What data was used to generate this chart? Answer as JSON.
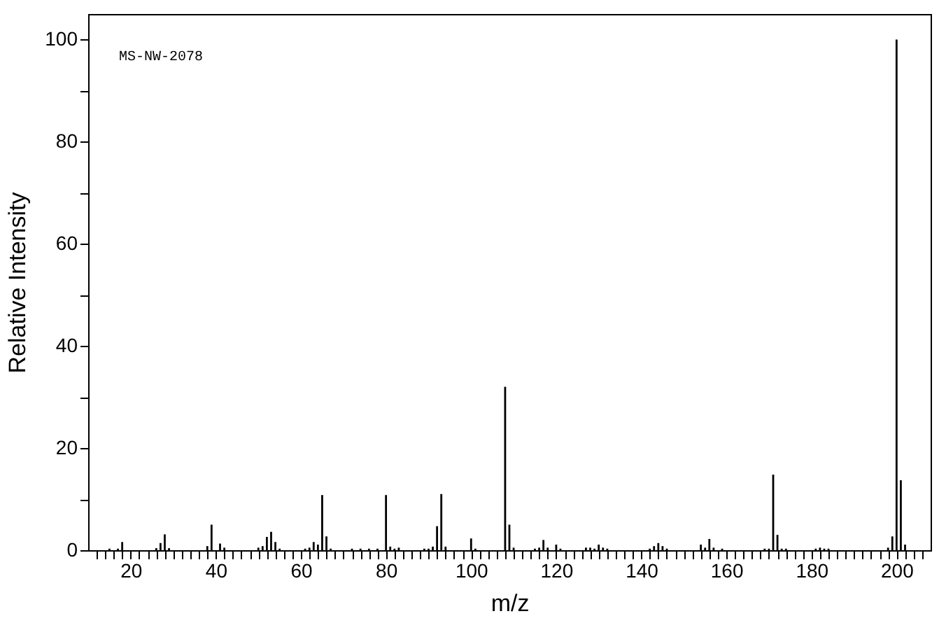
{
  "chart_data": {
    "type": "bar",
    "xlabel": "m/z",
    "ylabel": "Relative Intensity",
    "color": "#000000",
    "grid": false,
    "annotations": [
      "MS-NW-2078"
    ],
    "xlim": [
      10,
      208
    ],
    "ylim": [
      0,
      105
    ],
    "x": [
      15,
      17,
      18,
      26,
      27,
      28,
      29,
      38,
      39,
      41,
      42,
      50,
      51,
      52,
      53,
      54,
      55,
      61,
      62,
      63,
      64,
      65,
      66,
      67,
      72,
      74,
      76,
      78,
      80,
      81,
      82,
      83,
      89,
      90,
      91,
      92,
      93,
      94,
      100,
      101,
      108,
      109,
      110,
      115,
      116,
      117,
      118,
      120,
      121,
      127,
      128,
      129,
      130,
      131,
      132,
      142,
      143,
      144,
      145,
      146,
      154,
      155,
      156,
      157,
      159,
      169,
      170,
      171,
      172,
      173,
      174,
      181,
      182,
      183,
      184,
      198,
      199,
      200,
      201,
      202
    ],
    "values": [
      0.3,
      0.3,
      1.6,
      0.4,
      1.4,
      3.1,
      0.4,
      0.8,
      5,
      1.3,
      0.5,
      0.5,
      0.8,
      2.6,
      3.6,
      1.6,
      0.3,
      0.3,
      0.5,
      1.6,
      1.1,
      10.8,
      2.7,
      0.3,
      0.3,
      0.3,
      0.3,
      0.3,
      10.8,
      0.7,
      0.3,
      0.5,
      0.3,
      0.3,
      0.7,
      4.7,
      11,
      0.7,
      2.3,
      0.3,
      32,
      5,
      0.5,
      0.3,
      0.5,
      2,
      0.5,
      1.1,
      0.3,
      0.5,
      0.5,
      0.3,
      1.1,
      0.5,
      0.3,
      0.3,
      0.8,
      1.4,
      0.8,
      0.3,
      1.1,
      0.5,
      2.2,
      0.5,
      0.3,
      0.3,
      0.3,
      14.8,
      3,
      0.3,
      0.3,
      0.3,
      0.5,
      0.3,
      0.3,
      0.5,
      2.7,
      100,
      13.7,
      1.1
    ],
    "xticks": [
      {
        "value": 12,
        "label": null
      },
      {
        "value": 14,
        "label": null
      },
      {
        "value": 16,
        "label": null
      },
      {
        "value": 18,
        "label": null
      },
      20,
      {
        "value": 22,
        "label": null
      },
      {
        "value": 24,
        "label": null
      },
      {
        "value": 26,
        "label": null
      },
      {
        "value": 28,
        "label": null
      },
      {
        "value": 30,
        "label": null
      },
      {
        "value": 32,
        "label": null
      },
      {
        "value": 34,
        "label": null
      },
      {
        "value": 36,
        "label": null
      },
      {
        "value": 38,
        "label": null
      },
      40,
      {
        "value": 42,
        "label": null
      },
      {
        "value": 44,
        "label": null
      },
      {
        "value": 46,
        "label": null
      },
      {
        "value": 48,
        "label": null
      },
      {
        "value": 50,
        "label": null
      },
      {
        "value": 52,
        "label": null
      },
      {
        "value": 54,
        "label": null
      },
      {
        "value": 56,
        "label": null
      },
      {
        "value": 58,
        "label": null
      },
      60,
      {
        "value": 62,
        "label": null
      },
      {
        "value": 64,
        "label": null
      },
      {
        "value": 66,
        "label": null
      },
      {
        "value": 68,
        "label": null
      },
      {
        "value": 70,
        "label": null
      },
      {
        "value": 72,
        "label": null
      },
      {
        "value": 74,
        "label": null
      },
      {
        "value": 76,
        "label": null
      },
      {
        "value": 78,
        "label": null
      },
      80,
      {
        "value": 82,
        "label": null
      },
      {
        "value": 84,
        "label": null
      },
      {
        "value": 86,
        "label": null
      },
      {
        "value": 88,
        "label": null
      },
      {
        "value": 90,
        "label": null
      },
      {
        "value": 92,
        "label": null
      },
      {
        "value": 94,
        "label": null
      },
      {
        "value": 96,
        "label": null
      },
      {
        "value": 98,
        "label": null
      },
      100,
      {
        "value": 102,
        "label": null
      },
      {
        "value": 104,
        "label": null
      },
      {
        "value": 106,
        "label": null
      },
      {
        "value": 108,
        "label": null
      },
      {
        "value": 110,
        "label": null
      },
      {
        "value": 112,
        "label": null
      },
      {
        "value": 114,
        "label": null
      },
      {
        "value": 116,
        "label": null
      },
      {
        "value": 118,
        "label": null
      },
      120,
      {
        "value": 122,
        "label": null
      },
      {
        "value": 124,
        "label": null
      },
      {
        "value": 126,
        "label": null
      },
      {
        "value": 128,
        "label": null
      },
      {
        "value": 130,
        "label": null
      },
      {
        "value": 132,
        "label": null
      },
      {
        "value": 134,
        "label": null
      },
      {
        "value": 136,
        "label": null
      },
      {
        "value": 138,
        "label": null
      },
      140,
      {
        "value": 142,
        "label": null
      },
      {
        "value": 144,
        "label": null
      },
      {
        "value": 146,
        "label": null
      },
      {
        "value": 148,
        "label": null
      },
      {
        "value": 150,
        "label": null
      },
      {
        "value": 152,
        "label": null
      },
      {
        "value": 154,
        "label": null
      },
      {
        "value": 156,
        "label": null
      },
      {
        "value": 158,
        "label": null
      },
      160,
      {
        "value": 162,
        "label": null
      },
      {
        "value": 164,
        "label": null
      },
      {
        "value": 166,
        "label": null
      },
      {
        "value": 168,
        "label": null
      },
      {
        "value": 170,
        "label": null
      },
      {
        "value": 172,
        "label": null
      },
      {
        "value": 174,
        "label": null
      },
      {
        "value": 176,
        "label": null
      },
      {
        "value": 178,
        "label": null
      },
      180,
      {
        "value": 182,
        "label": null
      },
      {
        "value": 184,
        "label": null
      },
      {
        "value": 186,
        "label": null
      },
      {
        "value": 188,
        "label": null
      },
      {
        "value": 190,
        "label": null
      },
      {
        "value": 192,
        "label": null
      },
      {
        "value": 194,
        "label": null
      },
      {
        "value": 196,
        "label": null
      },
      {
        "value": 198,
        "label": null
      },
      200,
      {
        "value": 202,
        "label": null
      },
      {
        "value": 204,
        "label": null
      },
      {
        "value": 206,
        "label": null
      }
    ],
    "yticks": [
      0,
      {
        "value": 10,
        "label": null
      },
      20,
      {
        "value": 30,
        "label": null
      },
      40,
      {
        "value": 50,
        "label": null
      },
      60,
      {
        "value": 70,
        "label": null
      },
      80,
      {
        "value": 90,
        "label": null
      },
      100
    ]
  }
}
